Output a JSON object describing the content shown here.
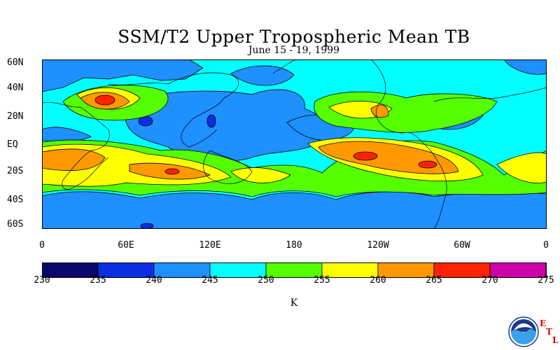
{
  "title": "SSM/T2 Upper Tropospheric Mean TB",
  "subtitle": "June 15 - 19, 1999",
  "lat_labels": [
    "60N",
    "40N",
    "20N",
    "EQ",
    "20S",
    "40S",
    "60S"
  ],
  "lon_labels": [
    "0",
    "60E",
    "120E",
    "180",
    "120W",
    "60W",
    "0"
  ],
  "colorbar": {
    "ticks": [
      "230",
      "235",
      "240",
      "245",
      "250",
      "255",
      "260",
      "265",
      "270",
      "275"
    ],
    "colors": [
      "#08086a",
      "#0a2ee0",
      "#1e90ff",
      "#00ffff",
      "#55ff00",
      "#ffff00",
      "#ff9900",
      "#ff2200",
      "#cc00aa"
    ],
    "unit": "K"
  },
  "map": {
    "background_color": "#00ffff",
    "lat_range": [
      -60,
      60
    ],
    "lon_range": [
      0,
      360
    ]
  },
  "logo": {
    "name": "NOAA",
    "letters": [
      "E",
      "T",
      "L"
    ]
  }
}
